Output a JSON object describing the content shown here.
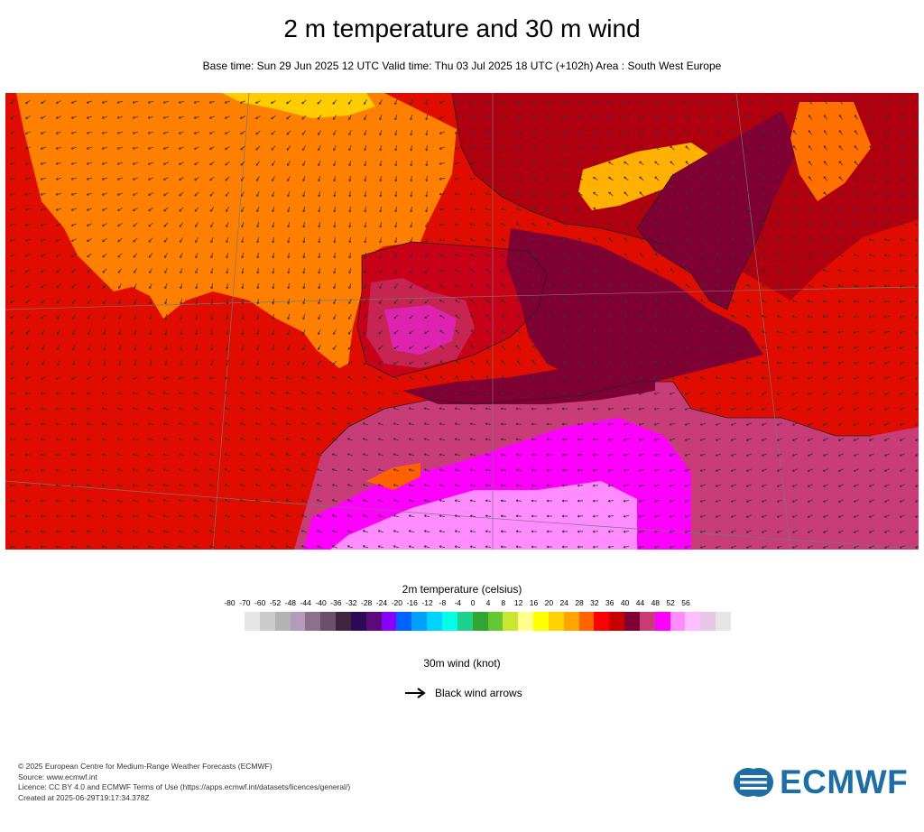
{
  "header": {
    "title": "2 m temperature and 30 m wind",
    "subtitle": "Base time: Sun 29 Jun 2025 12 UTC Valid time: Thu 03 Jul 2025 18 UTC (+102h) Area : South West Europe"
  },
  "legend": {
    "title": "2m temperature (celsius)",
    "ticks": [
      "-80",
      "-70",
      "-60",
      "-52",
      "-48",
      "-44",
      "-40",
      "-36",
      "-32",
      "-28",
      "-24",
      "-20",
      "-16",
      "-12",
      "-8",
      "-4",
      "0",
      "4",
      "8",
      "12",
      "16",
      "20",
      "24",
      "28",
      "32",
      "36",
      "40",
      "44",
      "48",
      "52",
      "56"
    ],
    "colors": [
      "#e6e6e6",
      "#cccccc",
      "#b3b3b3",
      "#b39bbb",
      "#8c708c",
      "#6b4f6b",
      "#3f233f",
      "#2d0a55",
      "#5a0a7a",
      "#8a00ff",
      "#0063ff",
      "#00a0ff",
      "#00d2ff",
      "#00ffe6",
      "#1fd28c",
      "#31a532",
      "#64c832",
      "#c8e632",
      "#ffff8c",
      "#ffff00",
      "#ffd200",
      "#ffa500",
      "#ff6400",
      "#ff0000",
      "#c80000",
      "#800033",
      "#c83c78",
      "#ff00ff",
      "#ff8cff",
      "#ffbeff",
      "#e6c8e6",
      "#e6e6e6"
    ]
  },
  "wind": {
    "title": "30m wind (knot)",
    "arrow_label": "Black wind arrows"
  },
  "footer": {
    "lines": [
      "© 2025 European Centre for Medium-Range Weather Forecasts (ECMWF)",
      "Source: www.ecmwf.int",
      "Licence: CC BY 4.0 and ECMWF Terms of Use (https://apps.ecmwf.int/datasets/licences/general/)",
      "Created at 2025-06-29T19:17:34.378Z"
    ]
  },
  "logo": {
    "text": "ECMWF",
    "color": "#1c6ea4"
  }
}
